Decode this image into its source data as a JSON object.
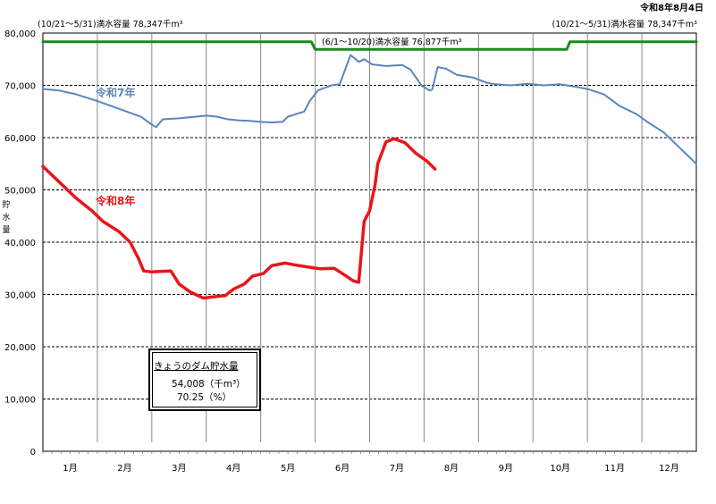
{
  "report_date": "令和8年8月4日",
  "capacity_labels": {
    "winter_left": "(10/21～5/31)満水容量 78,347千m³",
    "summer": "(6/1～10/20)満水容量 76,877千m³",
    "winter_right": "(10/21～5/31)満水容量 78,347千m³"
  },
  "info_box": {
    "title": "きょうのダム貯水量",
    "volume": "54,008（千m³）",
    "ratio": "70.25（%）"
  },
  "colors": {
    "r7": "#5a86bd",
    "r8": "#e8161b",
    "capacity": "#1a8a1a"
  },
  "chart_data": {
    "type": "line",
    "ylabel": "貯水量",
    "ylim": [
      0,
      80000
    ],
    "yticks": [
      "0",
      "10,000",
      "20,000",
      "30,000",
      "40,000",
      "50,000",
      "60,000",
      "70,000",
      "80,000"
    ],
    "ytick_values": [
      0,
      10000,
      20000,
      30000,
      40000,
      50000,
      60000,
      70000,
      80000
    ],
    "months": [
      "1月",
      "2月",
      "3月",
      "4月",
      "5月",
      "6月",
      "7月",
      "8月",
      "9月",
      "10月",
      "11月",
      "12月"
    ],
    "x_unit": "month (1.0 = Jan 1, 13.0 = Dec 31)",
    "grid": "dashed horizontal and vertical",
    "series": [
      {
        "name": "令和7年",
        "color": "#5a86bd",
        "points": [
          [
            1.0,
            69300
          ],
          [
            1.3,
            69000
          ],
          [
            1.6,
            68300
          ],
          [
            2.0,
            67000
          ],
          [
            2.4,
            65500
          ],
          [
            2.8,
            64000
          ],
          [
            3.0,
            62500
          ],
          [
            3.08,
            62000
          ],
          [
            3.2,
            63500
          ],
          [
            3.5,
            63700
          ],
          [
            3.8,
            64000
          ],
          [
            4.0,
            64200
          ],
          [
            4.2,
            64000
          ],
          [
            4.4,
            63500
          ],
          [
            4.6,
            63300
          ],
          [
            4.8,
            63200
          ],
          [
            5.0,
            63000
          ],
          [
            5.2,
            62900
          ],
          [
            5.4,
            63000
          ],
          [
            5.5,
            64000
          ],
          [
            5.8,
            65000
          ],
          [
            5.9,
            67000
          ],
          [
            6.05,
            69000
          ],
          [
            6.3,
            70000
          ],
          [
            6.45,
            70200
          ],
          [
            6.55,
            73000
          ],
          [
            6.65,
            75800
          ],
          [
            6.8,
            74500
          ],
          [
            6.9,
            75000
          ],
          [
            7.05,
            74000
          ],
          [
            7.3,
            73700
          ],
          [
            7.6,
            73900
          ],
          [
            7.75,
            73000
          ],
          [
            7.95,
            70000
          ],
          [
            8.1,
            69000
          ],
          [
            8.15,
            69200
          ],
          [
            8.25,
            73500
          ],
          [
            8.4,
            73200
          ],
          [
            8.6,
            72000
          ],
          [
            8.9,
            71500
          ],
          [
            9.15,
            70500
          ],
          [
            9.3,
            70200
          ],
          [
            9.6,
            70000
          ],
          [
            9.9,
            70300
          ],
          [
            10.2,
            70000
          ],
          [
            10.5,
            70200
          ],
          [
            10.8,
            69700
          ],
          [
            11.0,
            69300
          ],
          [
            11.3,
            68300
          ],
          [
            11.6,
            66000
          ],
          [
            11.9,
            64500
          ],
          [
            12.1,
            63000
          ],
          [
            12.4,
            61000
          ],
          [
            12.7,
            58000
          ],
          [
            13.0,
            55000
          ]
        ]
      },
      {
        "name": "令和8年",
        "color": "#e8161b",
        "points": [
          [
            1.0,
            54500
          ],
          [
            1.3,
            51500
          ],
          [
            1.6,
            48500
          ],
          [
            1.9,
            46000
          ],
          [
            2.1,
            44000
          ],
          [
            2.4,
            42000
          ],
          [
            2.6,
            40000
          ],
          [
            2.75,
            37000
          ],
          [
            2.85,
            34500
          ],
          [
            3.0,
            34300
          ],
          [
            3.15,
            34400
          ],
          [
            3.35,
            34500
          ],
          [
            3.5,
            32000
          ],
          [
            3.7,
            30500
          ],
          [
            3.95,
            29300
          ],
          [
            4.1,
            29500
          ],
          [
            4.35,
            29800
          ],
          [
            4.5,
            31000
          ],
          [
            4.7,
            32000
          ],
          [
            4.85,
            33500
          ],
          [
            5.05,
            34000
          ],
          [
            5.2,
            35500
          ],
          [
            5.45,
            36000
          ],
          [
            5.6,
            35700
          ],
          [
            5.9,
            35200
          ],
          [
            6.1,
            34900
          ],
          [
            6.35,
            35000
          ],
          [
            6.5,
            34000
          ],
          [
            6.7,
            32600
          ],
          [
            6.8,
            32300
          ],
          [
            6.9,
            44000
          ],
          [
            7.0,
            46000
          ],
          [
            7.1,
            51000
          ],
          [
            7.15,
            55000
          ],
          [
            7.3,
            59200
          ],
          [
            7.45,
            59800
          ],
          [
            7.65,
            59000
          ],
          [
            7.85,
            57000
          ],
          [
            8.05,
            55500
          ],
          [
            8.2,
            54008
          ]
        ]
      },
      {
        "name": "満水容量",
        "color": "#1a8a1a",
        "points": [
          [
            1.0,
            78347
          ],
          [
            5.93,
            78347
          ],
          [
            6.0,
            76877
          ],
          [
            10.62,
            76877
          ],
          [
            10.68,
            78347
          ],
          [
            13.0,
            78347
          ]
        ]
      }
    ]
  }
}
